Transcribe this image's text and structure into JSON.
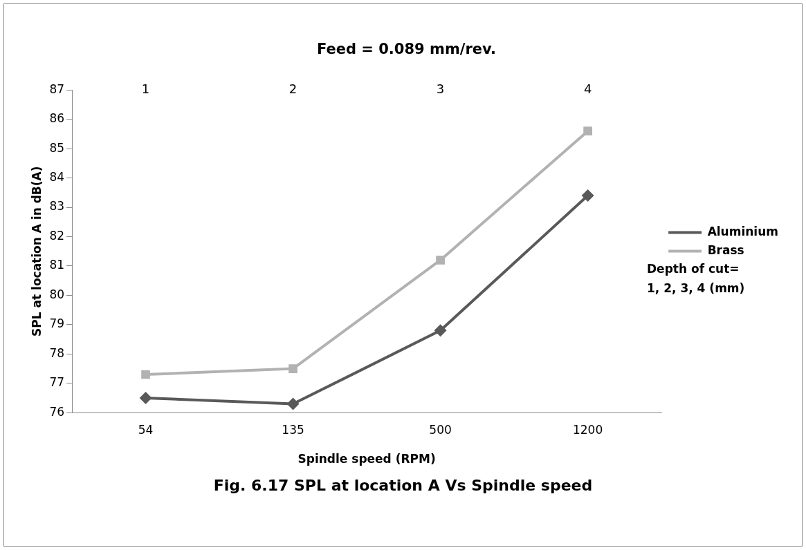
{
  "chart_data": {
    "type": "line",
    "title": "Feed = 0.089 mm/rev.",
    "xlabel": "Spindle speed (RPM)",
    "ylabel": "SPL at location A in dB(A)",
    "categories": [
      "54",
      "135",
      "500",
      "1200"
    ],
    "series": [
      {
        "name": "Aluminium",
        "color": "#595959",
        "marker": "diamond",
        "values": [
          76.5,
          76.3,
          78.8,
          83.4
        ]
      },
      {
        "name": "Brass",
        "color": "#b2b2b2",
        "marker": "square",
        "values": [
          77.3,
          77.5,
          81.2,
          85.6
        ]
      }
    ],
    "ylim": [
      76,
      87
    ],
    "yticks": [
      76,
      77,
      78,
      79,
      80,
      81,
      82,
      83,
      84,
      85,
      86,
      87
    ],
    "grid": false,
    "legend": "right",
    "annotations": [
      "1",
      "2",
      "3",
      "4",
      "Depth of cut=\n1, 2, 3, 4 (mm)",
      "Fig. 6.17 SPL at location A Vs Spindle speed"
    ]
  }
}
